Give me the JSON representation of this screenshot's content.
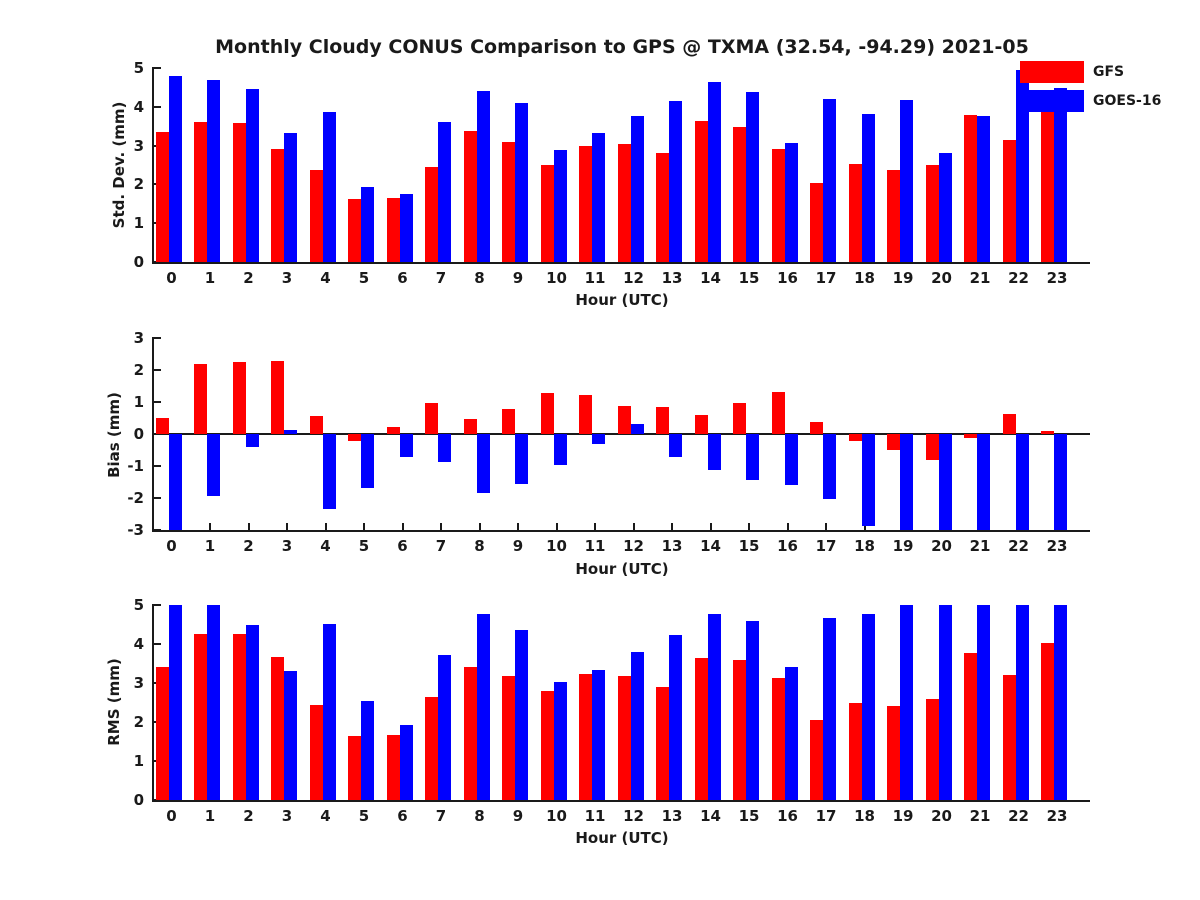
{
  "title": "Monthly Cloudy CONUS Comparison to GPS @ TXMA (32.54, -94.29) 2021-05",
  "colors": {
    "gfs": "#ff0000",
    "goes16": "#0000ff",
    "axis": "#1a1a1a"
  },
  "legend": {
    "items": [
      {
        "label": "GFS",
        "color": "#ff0000"
      },
      {
        "label": "GOES-16",
        "color": "#0000ff"
      }
    ]
  },
  "chart_data": [
    {
      "type": "bar",
      "panel": "std_dev",
      "ylabel": "Std. Dev. (mm)",
      "xlabel": "Hour (UTC)",
      "ylim": [
        0,
        5
      ],
      "yticks": [
        0,
        1,
        2,
        3,
        4,
        5
      ],
      "grid": false,
      "legend_position": "top-right",
      "categories": [
        0,
        1,
        2,
        3,
        4,
        5,
        6,
        7,
        8,
        9,
        10,
        11,
        12,
        13,
        14,
        15,
        16,
        17,
        18,
        19,
        20,
        21,
        22,
        23
      ],
      "series": [
        {
          "name": "GFS",
          "color": "#ff0000",
          "values": [
            3.35,
            3.6,
            3.58,
            2.91,
            2.37,
            1.62,
            1.65,
            2.45,
            3.38,
            3.1,
            2.5,
            2.99,
            3.05,
            2.81,
            3.63,
            3.48,
            2.91,
            2.04,
            2.53,
            2.37,
            2.5,
            3.8,
            3.15,
            4.0
          ]
        },
        {
          "name": "GOES-16",
          "color": "#0000ff",
          "values": [
            4.8,
            4.7,
            4.45,
            3.32,
            3.88,
            1.93,
            1.75,
            3.62,
            4.4,
            4.1,
            2.88,
            3.32,
            3.76,
            4.15,
            4.65,
            4.38,
            3.07,
            4.2,
            3.82,
            4.17,
            2.8,
            3.77,
            4.95,
            4.48
          ]
        }
      ]
    },
    {
      "type": "bar",
      "panel": "bias",
      "ylabel": "Bias (mm)",
      "xlabel": "Hour (UTC)",
      "ylim": [
        -3,
        3
      ],
      "yticks": [
        3,
        2,
        1,
        0,
        -1,
        -2,
        -3
      ],
      "grid": false,
      "categories": [
        0,
        1,
        2,
        3,
        4,
        5,
        6,
        7,
        8,
        9,
        10,
        11,
        12,
        13,
        14,
        15,
        16,
        17,
        18,
        19,
        20,
        21,
        22,
        23
      ],
      "series": [
        {
          "name": "GFS",
          "color": "#ff0000",
          "values": [
            0.5,
            2.2,
            2.25,
            2.27,
            0.55,
            -0.22,
            0.23,
            0.97,
            0.48,
            0.77,
            1.27,
            1.22,
            0.88,
            0.86,
            0.58,
            0.98,
            1.3,
            0.38,
            -0.21,
            -0.5,
            -0.8,
            -0.12,
            0.62,
            0.08
          ]
        },
        {
          "name": "GOES-16",
          "color": "#0000ff",
          "values": [
            -3.0,
            -1.93,
            -0.4,
            0.13,
            -2.35,
            -1.68,
            -0.72,
            -0.87,
            -1.83,
            -1.55,
            -0.98,
            -0.3,
            0.32,
            -0.72,
            -1.12,
            -1.43,
            -1.58,
            -2.03,
            -2.87,
            -3.0,
            -3.0,
            -3.0,
            -3.0,
            -3.0
          ]
        }
      ]
    },
    {
      "type": "bar",
      "panel": "rms",
      "ylabel": "RMS (mm)",
      "xlabel": "Hour (UTC)",
      "ylim": [
        0,
        5
      ],
      "yticks": [
        0,
        1,
        2,
        3,
        4,
        5
      ],
      "grid": false,
      "categories": [
        0,
        1,
        2,
        3,
        4,
        5,
        6,
        7,
        8,
        9,
        10,
        11,
        12,
        13,
        14,
        15,
        16,
        17,
        18,
        19,
        20,
        21,
        22,
        23
      ],
      "series": [
        {
          "name": "GFS",
          "color": "#ff0000",
          "values": [
            3.4,
            4.25,
            4.25,
            3.68,
            2.43,
            1.63,
            1.68,
            2.63,
            3.42,
            3.18,
            2.8,
            3.23,
            3.18,
            2.89,
            3.63,
            3.58,
            3.13,
            2.04,
            2.48,
            2.4,
            2.6,
            3.78,
            3.2,
            4.02
          ]
        },
        {
          "name": "GOES-16",
          "color": "#0000ff",
          "values": [
            5.0,
            5.0,
            4.48,
            3.32,
            4.52,
            2.53,
            1.92,
            3.72,
            4.78,
            4.37,
            3.03,
            3.33,
            3.8,
            4.22,
            4.77,
            4.6,
            3.42,
            4.67,
            4.78,
            5.0,
            5.0,
            5.0,
            5.0,
            5.0
          ]
        }
      ]
    }
  ]
}
